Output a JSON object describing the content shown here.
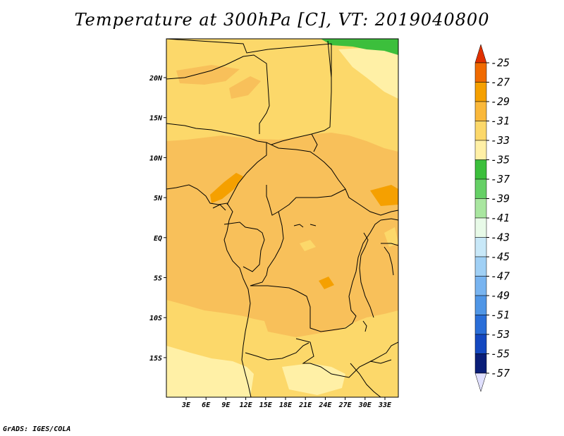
{
  "title": "Temperature at 300hPa [C], VT: 2019040800",
  "credit": "GrADS: IGES/COLA",
  "map": {
    "lat_labels": [
      "20N",
      "15N",
      "10N",
      "5N",
      "EQ",
      "5S",
      "10S",
      "15S"
    ],
    "lon_labels": [
      "3E",
      "6E",
      "9E",
      "12E",
      "15E",
      "18E",
      "21E",
      "24E",
      "27E",
      "30E",
      "33E"
    ]
  },
  "colorbar": {
    "labels": [
      "-25",
      "-27",
      "-29",
      "-31",
      "-33",
      "-35",
      "-37",
      "-39",
      "-41",
      "-43",
      "-45",
      "-47",
      "-49",
      "-51",
      "-53",
      "-55",
      "-57"
    ],
    "colors": [
      "#e03000",
      "#f06a00",
      "#f5a000",
      "#fab83a",
      "#fcd86a",
      "#fff0a6",
      "#3cbf3c",
      "#66d066",
      "#a9e6a0",
      "#e8fae8",
      "#c8e8f8",
      "#a0d0f5",
      "#78b4f0",
      "#5096e6",
      "#2a6ed8",
      "#1448c0",
      "#0a1e78",
      "#e0e0ff"
    ]
  }
}
